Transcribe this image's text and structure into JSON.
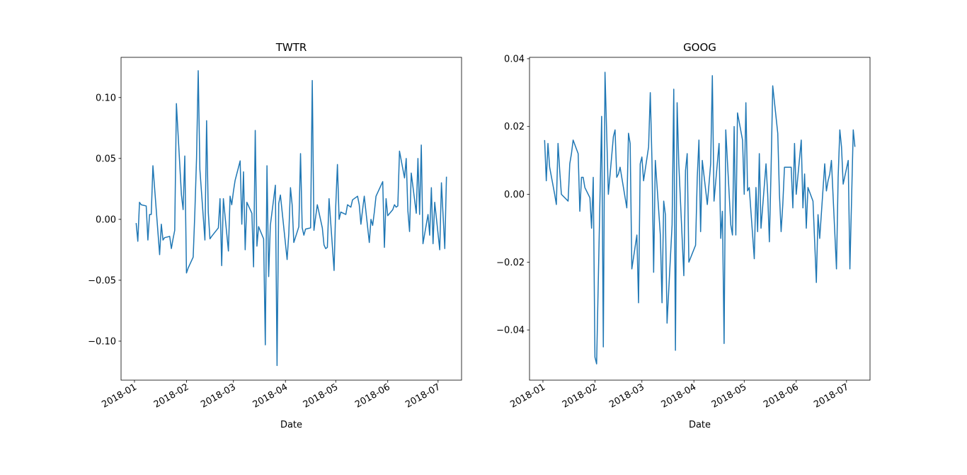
{
  "chart_data": [
    {
      "type": "line",
      "title": "TWTR",
      "x_label": "Date",
      "color": "#1f77b4",
      "x": [
        "2018-01-02",
        "2018-01-03",
        "2018-01-04",
        "2018-01-05",
        "2018-01-08",
        "2018-01-09",
        "2018-01-10",
        "2018-01-11",
        "2018-01-12",
        "2018-01-16",
        "2018-01-17",
        "2018-01-18",
        "2018-01-19",
        "2018-01-22",
        "2018-01-23",
        "2018-01-24",
        "2018-01-25",
        "2018-01-26",
        "2018-01-29",
        "2018-01-30",
        "2018-01-31",
        "2018-02-01",
        "2018-02-02",
        "2018-02-05",
        "2018-02-06",
        "2018-02-07",
        "2018-02-08",
        "2018-02-09",
        "2018-02-12",
        "2018-02-13",
        "2018-02-14",
        "2018-02-15",
        "2018-02-16",
        "2018-02-20",
        "2018-02-21",
        "2018-02-22",
        "2018-02-23",
        "2018-02-26",
        "2018-02-27",
        "2018-02-28",
        "2018-03-01",
        "2018-03-02",
        "2018-03-05",
        "2018-03-06",
        "2018-03-07",
        "2018-03-08",
        "2018-03-09",
        "2018-03-12",
        "2018-03-13",
        "2018-03-14",
        "2018-03-15",
        "2018-03-16",
        "2018-03-19",
        "2018-03-20",
        "2018-03-21",
        "2018-03-22",
        "2018-03-23",
        "2018-03-26",
        "2018-03-27",
        "2018-03-28",
        "2018-03-29",
        "2018-04-02",
        "2018-04-03",
        "2018-04-04",
        "2018-04-05",
        "2018-04-06",
        "2018-04-09",
        "2018-04-10",
        "2018-04-11",
        "2018-04-12",
        "2018-04-13",
        "2018-04-16",
        "2018-04-17",
        "2018-04-18",
        "2018-04-19",
        "2018-04-20",
        "2018-04-23",
        "2018-04-24",
        "2018-04-25",
        "2018-04-26",
        "2018-04-27",
        "2018-04-30",
        "2018-05-01",
        "2018-05-02",
        "2018-05-03",
        "2018-05-04",
        "2018-05-07",
        "2018-05-08",
        "2018-05-09",
        "2018-05-10",
        "2018-05-11",
        "2018-05-14",
        "2018-05-15",
        "2018-05-16",
        "2018-05-17",
        "2018-05-18",
        "2018-05-21",
        "2018-05-22",
        "2018-05-23",
        "2018-05-24",
        "2018-05-25",
        "2018-05-29",
        "2018-05-30",
        "2018-05-31",
        "2018-06-01",
        "2018-06-04",
        "2018-06-05",
        "2018-06-06",
        "2018-06-07",
        "2018-06-08",
        "2018-06-11",
        "2018-06-12",
        "2018-06-13",
        "2018-06-14",
        "2018-06-15",
        "2018-06-18",
        "2018-06-19",
        "2018-06-20",
        "2018-06-21",
        "2018-06-22",
        "2018-06-25",
        "2018-06-26",
        "2018-06-27",
        "2018-06-28",
        "2018-06-29",
        "2018-07-02",
        "2018-07-03",
        "2018-07-05",
        "2018-07-06"
      ],
      "values": [
        -0.003,
        -0.018,
        0.014,
        0.012,
        0.011,
        -0.017,
        0.004,
        0.004,
        0.044,
        -0.029,
        -0.004,
        -0.017,
        -0.015,
        -0.014,
        -0.024,
        -0.016,
        -0.009,
        0.095,
        0.02,
        0.008,
        0.052,
        -0.044,
        -0.04,
        -0.031,
        0.006,
        0.05,
        0.122,
        0.041,
        -0.017,
        0.081,
        0.006,
        -0.016,
        -0.014,
        -0.007,
        0.017,
        -0.038,
        0.017,
        -0.026,
        0.019,
        0.012,
        0.023,
        0.032,
        0.048,
        -0.004,
        0.039,
        -0.025,
        0.014,
        0.005,
        -0.039,
        0.073,
        -0.022,
        -0.006,
        -0.016,
        -0.103,
        0.044,
        -0.047,
        -0.005,
        0.028,
        -0.12,
        0.013,
        0.02,
        -0.033,
        -0.012,
        0.026,
        0.012,
        -0.019,
        -0.006,
        0.054,
        -0.007,
        -0.013,
        -0.008,
        -0.007,
        0.114,
        -0.009,
        0.002,
        0.012,
        -0.007,
        -0.021,
        -0.024,
        -0.023,
        0.017,
        -0.042,
        0.011,
        0.045,
        0.0,
        0.006,
        0.004,
        0.012,
        0.011,
        0.01,
        0.016,
        0.019,
        0.012,
        -0.004,
        0.008,
        0.019,
        -0.019,
        0.0,
        -0.005,
        0.006,
        0.019,
        0.031,
        -0.023,
        0.017,
        0.003,
        0.008,
        0.012,
        0.01,
        0.011,
        0.056,
        0.034,
        0.05,
        0.007,
        -0.01,
        0.038,
        0.005,
        0.05,
        0.004,
        0.061,
        -0.02,
        0.004,
        -0.013,
        0.026,
        -0.02,
        0.014,
        -0.025,
        0.03,
        -0.024,
        0.035
      ],
      "xlim": [
        "2017-12-24",
        "2018-07-15"
      ],
      "ylim": [
        -0.132,
        0.133
      ],
      "xticks": [
        {
          "value": "2018-01-01",
          "label": "2018-01"
        },
        {
          "value": "2018-02-01",
          "label": "2018-02"
        },
        {
          "value": "2018-03-01",
          "label": "2018-03"
        },
        {
          "value": "2018-04-01",
          "label": "2018-04"
        },
        {
          "value": "2018-05-01",
          "label": "2018-05"
        },
        {
          "value": "2018-06-01",
          "label": "2018-06"
        },
        {
          "value": "2018-07-01",
          "label": "2018-07"
        }
      ],
      "yticks": [
        {
          "value": -0.1,
          "label": "−0.10"
        },
        {
          "value": -0.05,
          "label": "−0.05"
        },
        {
          "value": 0.0,
          "label": "0.00"
        },
        {
          "value": 0.05,
          "label": "0.05"
        },
        {
          "value": 0.1,
          "label": "0.10"
        }
      ]
    },
    {
      "type": "line",
      "title": "GOOG",
      "x_label": "Date",
      "color": "#1f77b4",
      "x": [
        "2018-01-02",
        "2018-01-03",
        "2018-01-04",
        "2018-01-05",
        "2018-01-08",
        "2018-01-09",
        "2018-01-10",
        "2018-01-11",
        "2018-01-12",
        "2018-01-16",
        "2018-01-17",
        "2018-01-18",
        "2018-01-19",
        "2018-01-22",
        "2018-01-23",
        "2018-01-24",
        "2018-01-25",
        "2018-01-26",
        "2018-01-29",
        "2018-01-30",
        "2018-01-31",
        "2018-02-01",
        "2018-02-02",
        "2018-02-05",
        "2018-02-06",
        "2018-02-07",
        "2018-02-08",
        "2018-02-09",
        "2018-02-12",
        "2018-02-13",
        "2018-02-14",
        "2018-02-15",
        "2018-02-16",
        "2018-02-20",
        "2018-02-21",
        "2018-02-22",
        "2018-02-23",
        "2018-02-26",
        "2018-02-27",
        "2018-02-28",
        "2018-03-01",
        "2018-03-02",
        "2018-03-05",
        "2018-03-06",
        "2018-03-07",
        "2018-03-08",
        "2018-03-09",
        "2018-03-12",
        "2018-03-13",
        "2018-03-14",
        "2018-03-15",
        "2018-03-16",
        "2018-03-19",
        "2018-03-20",
        "2018-03-21",
        "2018-03-22",
        "2018-03-23",
        "2018-03-26",
        "2018-03-27",
        "2018-03-28",
        "2018-03-29",
        "2018-04-02",
        "2018-04-03",
        "2018-04-04",
        "2018-04-05",
        "2018-04-06",
        "2018-04-09",
        "2018-04-10",
        "2018-04-11",
        "2018-04-12",
        "2018-04-13",
        "2018-04-16",
        "2018-04-17",
        "2018-04-18",
        "2018-04-19",
        "2018-04-20",
        "2018-04-23",
        "2018-04-24",
        "2018-04-25",
        "2018-04-26",
        "2018-04-27",
        "2018-04-30",
        "2018-05-01",
        "2018-05-02",
        "2018-05-03",
        "2018-05-04",
        "2018-05-07",
        "2018-05-08",
        "2018-05-09",
        "2018-05-10",
        "2018-05-11",
        "2018-05-14",
        "2018-05-15",
        "2018-05-16",
        "2018-05-17",
        "2018-05-18",
        "2018-05-21",
        "2018-05-22",
        "2018-05-23",
        "2018-05-24",
        "2018-05-25",
        "2018-05-29",
        "2018-05-30",
        "2018-05-31",
        "2018-06-01",
        "2018-06-04",
        "2018-06-05",
        "2018-06-06",
        "2018-06-07",
        "2018-06-08",
        "2018-06-11",
        "2018-06-12",
        "2018-06-13",
        "2018-06-14",
        "2018-06-15",
        "2018-06-18",
        "2018-06-19",
        "2018-06-20",
        "2018-06-21",
        "2018-06-22",
        "2018-06-25",
        "2018-06-26",
        "2018-06-27",
        "2018-06-28",
        "2018-06-29",
        "2018-07-02",
        "2018-07-03",
        "2018-07-05",
        "2018-07-06"
      ],
      "values": [
        0.016,
        0.004,
        0.015,
        0.008,
        0.0,
        -0.003,
        0.015,
        0.007,
        0.0,
        -0.002,
        0.009,
        0.012,
        0.016,
        0.012,
        -0.005,
        0.005,
        0.005,
        0.002,
        -0.001,
        -0.01,
        0.005,
        -0.048,
        -0.05,
        0.023,
        -0.045,
        0.036,
        0.018,
        0.0,
        0.017,
        0.019,
        0.005,
        0.006,
        0.008,
        -0.004,
        0.018,
        0.015,
        -0.022,
        -0.012,
        -0.032,
        0.009,
        0.011,
        0.004,
        0.014,
        0.03,
        0.01,
        -0.023,
        0.01,
        -0.012,
        -0.032,
        -0.002,
        -0.006,
        -0.038,
        -0.009,
        0.031,
        -0.046,
        0.027,
        0.009,
        -0.024,
        0.007,
        0.012,
        -0.02,
        -0.015,
        0.005,
        0.016,
        -0.011,
        0.01,
        -0.003,
        0.003,
        0.009,
        0.035,
        -0.002,
        0.015,
        -0.013,
        -0.005,
        -0.044,
        0.019,
        -0.009,
        -0.012,
        0.02,
        -0.012,
        0.024,
        0.016,
        0.0,
        0.027,
        0.001,
        0.002,
        -0.019,
        0.002,
        -0.011,
        0.012,
        -0.01,
        0.009,
        0.0,
        -0.014,
        0.007,
        0.032,
        0.018,
        0.0,
        -0.011,
        -0.003,
        0.008,
        0.008,
        -0.004,
        0.015,
        0.0,
        0.016,
        -0.004,
        0.006,
        -0.01,
        0.002,
        -0.002,
        -0.014,
        -0.026,
        -0.006,
        -0.013,
        0.009,
        0.001,
        0.004,
        0.006,
        0.01,
        -0.022,
        0.005,
        0.019,
        0.014,
        0.003,
        0.01,
        -0.022,
        0.019,
        0.014
      ],
      "xlim": [
        "2017-12-24",
        "2018-07-15"
      ],
      "ylim": [
        -0.0548,
        0.0404
      ],
      "xticks": [
        {
          "value": "2018-01-01",
          "label": "2018-01"
        },
        {
          "value": "2018-02-01",
          "label": "2018-02"
        },
        {
          "value": "2018-03-01",
          "label": "2018-03"
        },
        {
          "value": "2018-04-01",
          "label": "2018-04"
        },
        {
          "value": "2018-05-01",
          "label": "2018-05"
        },
        {
          "value": "2018-06-01",
          "label": "2018-06"
        },
        {
          "value": "2018-07-01",
          "label": "2018-07"
        }
      ],
      "yticks": [
        {
          "value": -0.04,
          "label": "−0.04"
        },
        {
          "value": -0.02,
          "label": "−0.02"
        },
        {
          "value": 0.0,
          "label": "0.00"
        },
        {
          "value": 0.02,
          "label": "0.02"
        },
        {
          "value": 0.04,
          "label": "0.04"
        }
      ]
    }
  ]
}
